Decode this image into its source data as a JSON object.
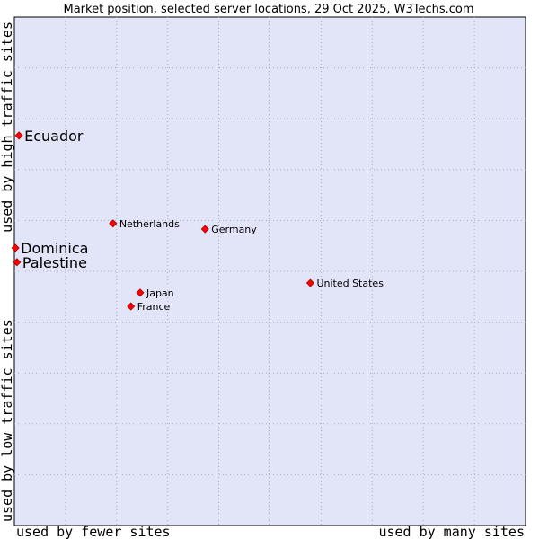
{
  "chart_data": {
    "type": "scatter",
    "title": "Market position, selected server locations, 29 Oct 2025, W3Techs.com",
    "xlabel_left": "used by fewer sites",
    "xlabel_right": "used by many sites",
    "ylabel_bottom": "used by low traffic sites",
    "ylabel_top": "used by high traffic sites",
    "xlim": [
      0,
      100
    ],
    "ylim": [
      0,
      100
    ],
    "grid": true,
    "colors": {
      "plot_background": "#e2e4f8",
      "grid": "#a9abc0",
      "marker": "#ff0000",
      "marker_edge": "#aa0000",
      "frame": "#000000"
    },
    "points": [
      {
        "name": "Ecuador",
        "x": 0.9,
        "y": 76.7,
        "emphasis": true
      },
      {
        "name": "Netherlands",
        "x": 19.3,
        "y": 59.4,
        "emphasis": false
      },
      {
        "name": "Germany",
        "x": 37.3,
        "y": 58.3,
        "emphasis": false
      },
      {
        "name": "Dominica",
        "x": 0.2,
        "y": 54.6,
        "emphasis": true
      },
      {
        "name": "Palestine",
        "x": 0.5,
        "y": 51.8,
        "emphasis": true
      },
      {
        "name": "United States",
        "x": 57.9,
        "y": 47.7,
        "emphasis": false
      },
      {
        "name": "Japan",
        "x": 24.6,
        "y": 45.8,
        "emphasis": false
      },
      {
        "name": "France",
        "x": 22.8,
        "y": 43.1,
        "emphasis": false
      }
    ]
  }
}
